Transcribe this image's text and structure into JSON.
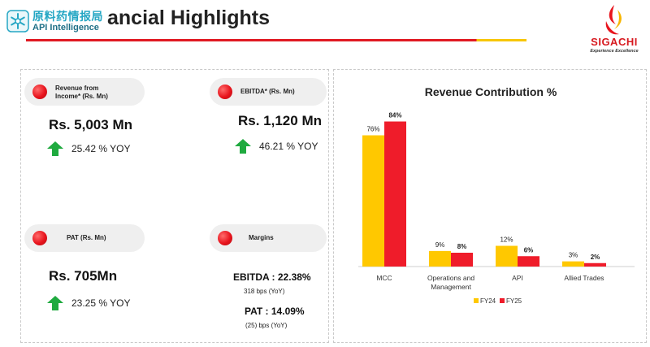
{
  "header": {
    "watermark_cn": "原料药情报局",
    "watermark_en": "API Intelligence",
    "title": "ancial Highlights",
    "brand_name": "SIGACHI",
    "brand_tagline": "Experience Excellence"
  },
  "kpis": {
    "revenue": {
      "label_line1": "Revenue from",
      "label_line2": "Income* (Rs. Mn)",
      "value": "Rs. 5,003 Mn",
      "yoy": "25.42 % YOY"
    },
    "ebitda": {
      "label": "EBITDA* (Rs. Mn)",
      "value": "Rs. 1,120 Mn",
      "yoy": "46.21 % YOY"
    },
    "pat": {
      "label": "PAT (Rs. Mn)",
      "value": "Rs. 705Mn",
      "yoy": "23.25 % YOY"
    },
    "margins": {
      "label": "Margins",
      "ebitda_margin": "EBITDA : 22.38%",
      "ebitda_change": "318 bps (YoY)",
      "pat_margin": "PAT : 14.09%",
      "pat_change": "(25) bps (YoY)"
    }
  },
  "colors": {
    "accent_red": "#e8141d",
    "fy24": "#ffc800",
    "fy25": "#ef1c2a",
    "arrow_green": "#1faa3f"
  },
  "chart_data": {
    "type": "bar",
    "title": "Revenue Contribution %",
    "categories": [
      "MCC",
      "Operations and Management",
      "API",
      "Allied Trades"
    ],
    "category_lines": [
      [
        "MCC"
      ],
      [
        "Operations and",
        "Management"
      ],
      [
        "API"
      ],
      [
        "Allied Trades"
      ]
    ],
    "series": [
      {
        "name": "FY24",
        "values": [
          76,
          9,
          12,
          3
        ]
      },
      {
        "name": "FY25",
        "values": [
          84,
          8,
          6,
          2
        ]
      }
    ],
    "ylim": [
      0,
      100
    ],
    "value_suffix": "%",
    "grid": false,
    "legend_position": "bottom-center"
  }
}
